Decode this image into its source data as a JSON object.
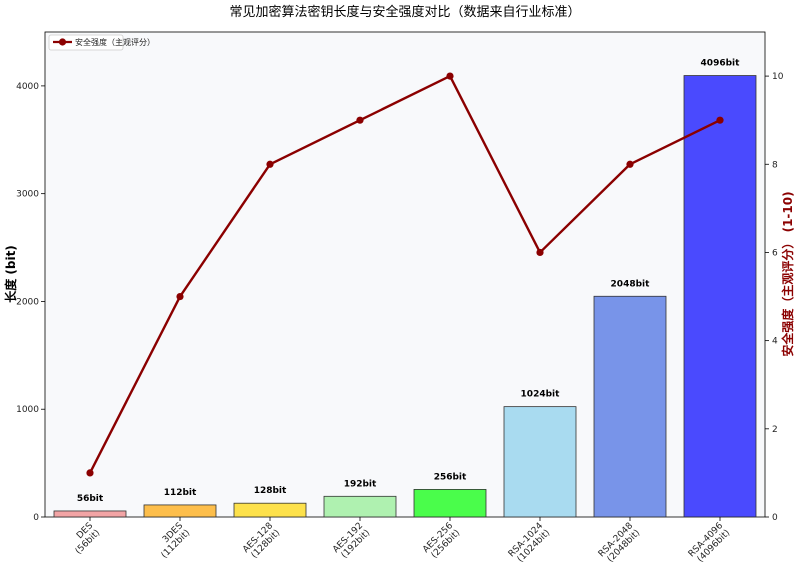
{
  "chart_data": {
    "type": "bar",
    "title": "常见加密算法密钥长度与安全强度对比（数据来自行业标准）",
    "categories": [
      "DES\n(56bit)",
      "3DES\n(112bit)",
      "AES-128\n(128bit)",
      "AES-192\n(192bit)",
      "AES-256\n(256bit)",
      "RSA-1024\n(1024bit)",
      "RSA-2048\n(2048bit)",
      "RSA-4096\n(4096bit)"
    ],
    "series": [
      {
        "type": "bar",
        "values": [
          56,
          112,
          128,
          192,
          256,
          1024,
          2048,
          4096
        ],
        "data_labels": [
          "56bit",
          "112bit",
          "128bit",
          "192bit",
          "256bit",
          "1024bit",
          "2048bit",
          "4096bit"
        ],
        "colors": [
          "#f08080",
          "#ffa500",
          "#ffd700",
          "#90ee90",
          "#00ff00",
          "#87ceeb",
          "#4169e1",
          "#0000ff"
        ]
      },
      {
        "type": "line",
        "name": "安全强度（主观评分）",
        "axis": "right",
        "values": [
          1,
          5,
          8,
          9,
          10,
          6,
          8,
          9
        ],
        "color": "#8b0000"
      }
    ],
    "ylabel": "长度 (bit)",
    "ylabel_right": "安全强度（主观评分） (1-10)",
    "ylim": [
      0,
      4500
    ],
    "ylim_right": [
      0,
      11
    ],
    "yticks": [
      0,
      1000,
      2000,
      3000,
      4000
    ],
    "yticks_right": [
      0,
      2,
      4,
      6,
      8,
      10
    ],
    "legend_position": "top-left",
    "grid": false,
    "background": "#f8f9fb"
  }
}
